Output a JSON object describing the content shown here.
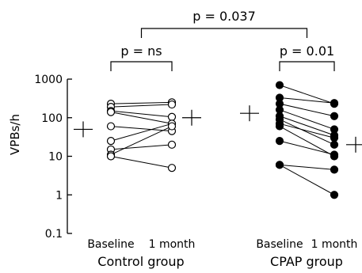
{
  "chart_data": {
    "type": "scatter",
    "title": "",
    "xlabel": "",
    "ylabel": "VPBs/h",
    "yscale": "log",
    "ylim": [
      0.1,
      1000
    ],
    "ytick_values": [
      0.1,
      1,
      10,
      100,
      1000
    ],
    "ytick_labels": [
      "0.1",
      "1",
      "10",
      "100",
      "1000"
    ],
    "grid": false,
    "legend": "none",
    "groups": [
      {
        "name": "Control group",
        "marker": "open-circle",
        "categories": [
          "Baseline",
          "1 month"
        ],
        "pairs": [
          [
            230,
            250
          ],
          [
            190,
            220
          ],
          [
            150,
            105
          ],
          [
            140,
            70
          ],
          [
            60,
            45
          ],
          [
            25,
            70
          ],
          [
            15,
            20
          ],
          [
            11,
            60
          ],
          [
            10,
            5
          ]
        ],
        "baseline_marker": 50,
        "month_marker": 100,
        "annotation": "p = ns"
      },
      {
        "name": "CPAP group",
        "marker": "filled-circle",
        "categories": [
          "Baseline",
          "1 month"
        ],
        "pairs": [
          [
            700,
            230
          ],
          [
            330,
            240
          ],
          [
            230,
            110
          ],
          [
            160,
            50
          ],
          [
            110,
            35
          ],
          [
            90,
            20
          ],
          [
            70,
            30
          ],
          [
            60,
            10
          ],
          [
            25,
            11
          ],
          [
            6,
            4.5
          ],
          [
            6,
            1
          ]
        ],
        "baseline_marker": 130,
        "month_marker": 20,
        "annotation": "p = 0.01"
      }
    ],
    "between_group_annotation": "p = 0.037"
  }
}
